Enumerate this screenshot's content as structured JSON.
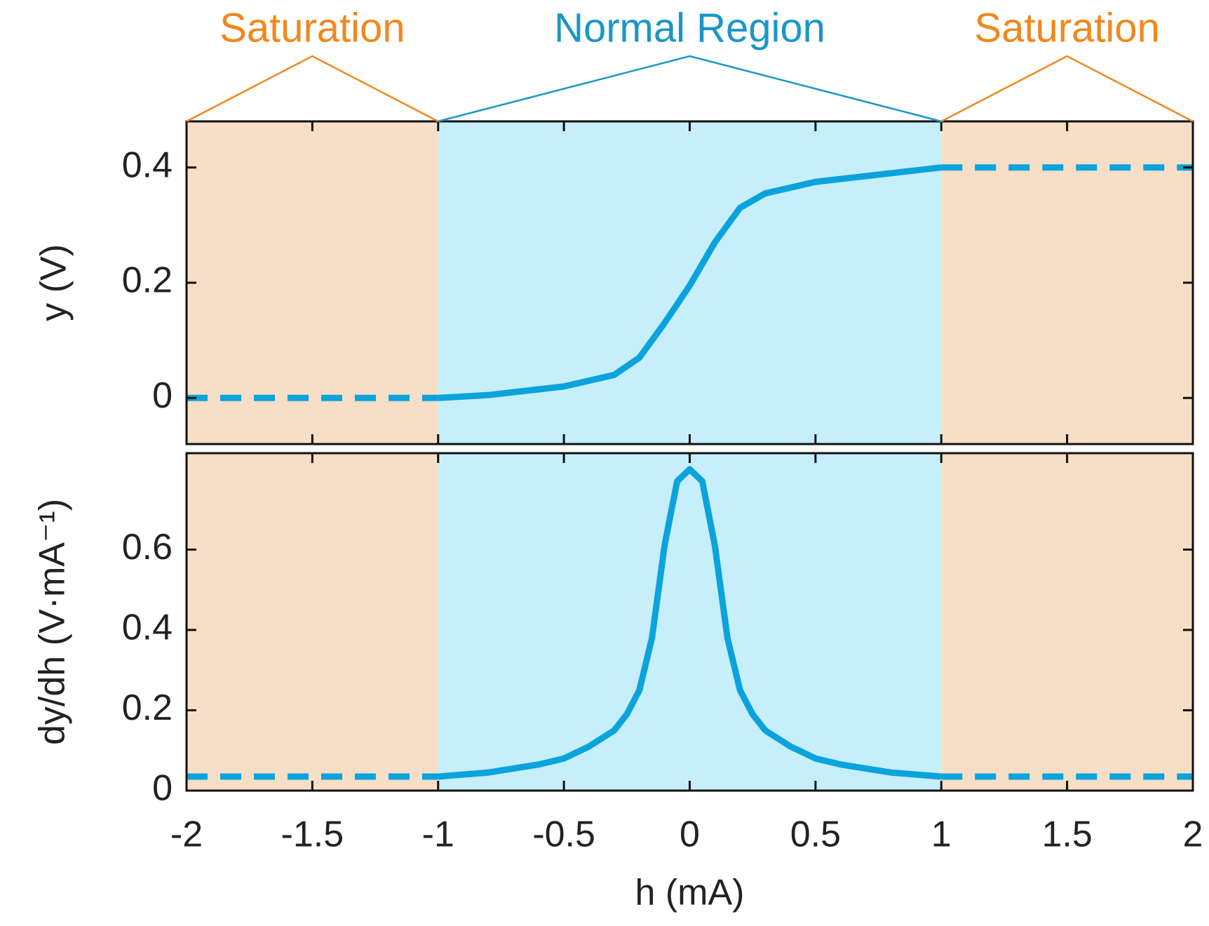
{
  "regions": [
    {
      "label": "Saturation",
      "from": -2,
      "to": -1,
      "color": "#f6dfc6",
      "label_color": "#f0881e"
    },
    {
      "label": "Normal Region",
      "from": -1,
      "to": 1,
      "color": "#c7eefb",
      "label_color": "#1a96c8"
    },
    {
      "label": "Saturation",
      "from": 1,
      "to": 2,
      "color": "#f6dfc6",
      "label_color": "#f0881e"
    }
  ],
  "chart_data": [
    {
      "type": "line",
      "ylabel": "y (V)",
      "xlim": [
        -2,
        2
      ],
      "xticks": [
        -2,
        -1.5,
        -1,
        -0.5,
        0,
        0.5,
        1,
        1.5,
        2
      ],
      "ylim": [
        -0.08,
        0.48
      ],
      "yticks": [
        0,
        0.2,
        0.4
      ],
      "series": [
        {
          "color": "#0aa3dc",
          "style": "solid",
          "x": [
            -1,
            -0.8,
            -0.5,
            -0.3,
            -0.2,
            -0.1,
            0,
            0.1,
            0.2,
            0.3,
            0.5,
            0.8,
            1
          ],
          "values": [
            0,
            0.005,
            0.02,
            0.04,
            0.07,
            0.13,
            0.195,
            0.27,
            0.33,
            0.355,
            0.375,
            0.39,
            0.4
          ]
        },
        {
          "color": "#0aa3dc",
          "style": "dashed",
          "x": [
            -2,
            -1
          ],
          "values": [
            0,
            0
          ]
        },
        {
          "color": "#0aa3dc",
          "style": "dashed",
          "x": [
            1,
            2
          ],
          "values": [
            0.4,
            0.4
          ]
        }
      ]
    },
    {
      "type": "line",
      "ylabel": "dy/dh (V·mA⁻¹)",
      "xlabel": "h (mA)",
      "xlim": [
        -2,
        2
      ],
      "xticks": [
        -2,
        -1.5,
        -1,
        -0.5,
        0,
        0.5,
        1,
        1.5,
        2
      ],
      "ylim": [
        0,
        0.84
      ],
      "yticks": [
        0,
        0.2,
        0.4,
        0.6
      ],
      "series": [
        {
          "color": "#0aa3dc",
          "style": "solid",
          "x": [
            -1,
            -0.8,
            -0.6,
            -0.5,
            -0.4,
            -0.3,
            -0.25,
            -0.2,
            -0.15,
            -0.1,
            -0.05,
            0,
            0.05,
            0.1,
            0.15,
            0.2,
            0.25,
            0.3,
            0.4,
            0.5,
            0.6,
            0.8,
            1
          ],
          "values": [
            0.035,
            0.045,
            0.065,
            0.08,
            0.11,
            0.15,
            0.19,
            0.25,
            0.38,
            0.61,
            0.77,
            0.8,
            0.77,
            0.61,
            0.38,
            0.25,
            0.19,
            0.15,
            0.11,
            0.08,
            0.065,
            0.045,
            0.035
          ]
        },
        {
          "color": "#0aa3dc",
          "style": "dashed",
          "x": [
            -2,
            -1
          ],
          "values": [
            0.035,
            0.035
          ]
        },
        {
          "color": "#0aa3dc",
          "style": "dashed",
          "x": [
            1,
            2
          ],
          "values": [
            0.035,
            0.035
          ]
        }
      ]
    }
  ]
}
